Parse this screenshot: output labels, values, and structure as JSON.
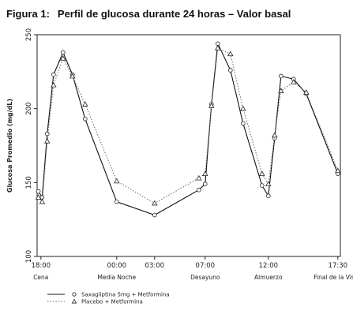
{
  "figure": {
    "label": "Figura 1:",
    "title": "Perfil de glucosa durante 24 horas – Valor basal"
  },
  "chart_data": {
    "type": "line",
    "ylabel": "Glucosa Promedio (mg/dL)",
    "xlabel": "",
    "ylim": [
      100,
      250
    ],
    "yticks": [
      100,
      150,
      200,
      250
    ],
    "xlim": [
      17.7,
      41.7
    ],
    "xticks": [
      {
        "x": 18,
        "time": "18:00",
        "label": "Cena"
      },
      {
        "x": 24,
        "time": "00:00",
        "label": "Media Noche"
      },
      {
        "x": 27,
        "time": "03:00",
        "label": ""
      },
      {
        "x": 31,
        "time": "07:00",
        "label": "Desayuno"
      },
      {
        "x": 36,
        "time": "12:00",
        "label": "Almuerzo"
      },
      {
        "x": 41.5,
        "time": "17:30",
        "label": "Final de la Visita"
      }
    ],
    "grid": false,
    "legend_position": "bottom-left",
    "series": [
      {
        "name": "Saxagliptina 5mg + Metformina",
        "line_style": "solid",
        "marker": "circle",
        "color": "#111111",
        "points": [
          [
            17.8,
            144
          ],
          [
            18.1,
            140
          ],
          [
            18.5,
            183
          ],
          [
            19.0,
            223
          ],
          [
            19.75,
            238
          ],
          [
            20.5,
            223
          ],
          [
            21.5,
            193
          ],
          [
            24.0,
            137
          ],
          [
            27.0,
            128
          ],
          [
            30.5,
            145
          ],
          [
            31.0,
            149
          ],
          [
            31.5,
            203
          ],
          [
            32.0,
            244
          ],
          [
            33.0,
            226
          ],
          [
            34.0,
            190
          ],
          [
            35.5,
            148
          ],
          [
            36.0,
            141
          ],
          [
            36.5,
            180
          ],
          [
            37.0,
            222
          ],
          [
            38.0,
            220
          ],
          [
            39.0,
            210
          ],
          [
            41.5,
            156
          ]
        ]
      },
      {
        "name": "Placebo + Metformina",
        "line_style": "dotted",
        "marker": "triangle",
        "color": "#555555",
        "points": [
          [
            17.8,
            140
          ],
          [
            18.1,
            137
          ],
          [
            18.5,
            178
          ],
          [
            19.0,
            216
          ],
          [
            19.75,
            234
          ],
          [
            20.5,
            222
          ],
          [
            21.5,
            203
          ],
          [
            24.0,
            151
          ],
          [
            27.0,
            136
          ],
          [
            30.5,
            153
          ],
          [
            31.0,
            156
          ],
          [
            31.5,
            202
          ],
          [
            32.0,
            241
          ],
          [
            33.0,
            237
          ],
          [
            34.0,
            200
          ],
          [
            35.5,
            156
          ],
          [
            36.0,
            149
          ],
          [
            36.5,
            182
          ],
          [
            37.0,
            212
          ],
          [
            38.0,
            218
          ],
          [
            39.0,
            211
          ],
          [
            41.5,
            158
          ]
        ]
      }
    ]
  }
}
